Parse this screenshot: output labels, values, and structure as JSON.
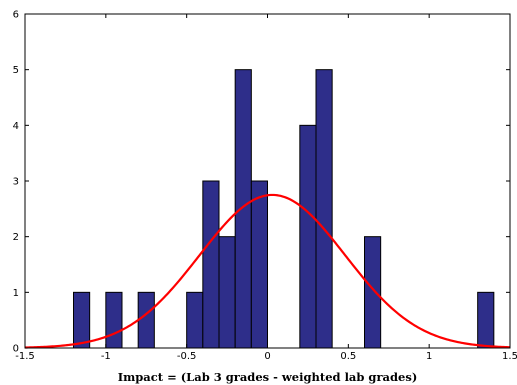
{
  "chart_data": {
    "type": "bar",
    "title": "",
    "xlabel": "Impact = (Lab 3 grades - weighted lab grades)",
    "ylabel": "",
    "xlim": [
      -1.5,
      1.5
    ],
    "ylim": [
      0,
      6
    ],
    "x_ticks": [
      -1.5,
      -1,
      -0.5,
      0,
      0.5,
      1,
      1.5
    ],
    "x_tick_labels": [
      "-1.5",
      "-1",
      "-0.5",
      "0",
      "0.5",
      "1",
      "1.5"
    ],
    "y_ticks": [
      0,
      1,
      2,
      3,
      4,
      5,
      6
    ],
    "y_tick_labels": [
      "0",
      "1",
      "2",
      "3",
      "4",
      "5",
      "6"
    ],
    "grid": false,
    "bin_width": 0.1,
    "bins": [
      {
        "center": -1.15,
        "count": 1
      },
      {
        "center": -0.95,
        "count": 1
      },
      {
        "center": -0.75,
        "count": 1
      },
      {
        "center": -0.45,
        "count": 1
      },
      {
        "center": -0.35,
        "count": 3
      },
      {
        "center": -0.25,
        "count": 2
      },
      {
        "center": -0.15,
        "count": 5
      },
      {
        "center": -0.05,
        "count": 3
      },
      {
        "center": 0.25,
        "count": 4
      },
      {
        "center": 0.35,
        "count": 5
      },
      {
        "center": 0.65,
        "count": 2
      },
      {
        "center": 1.35,
        "count": 1
      }
    ],
    "fit_curve": {
      "type": "normal",
      "mean": 0.03,
      "sd": 0.45,
      "peak": 2.75,
      "color": "#ff0000"
    },
    "bar_color": "#2e2e8a",
    "bar_edge_color": "#000000"
  }
}
